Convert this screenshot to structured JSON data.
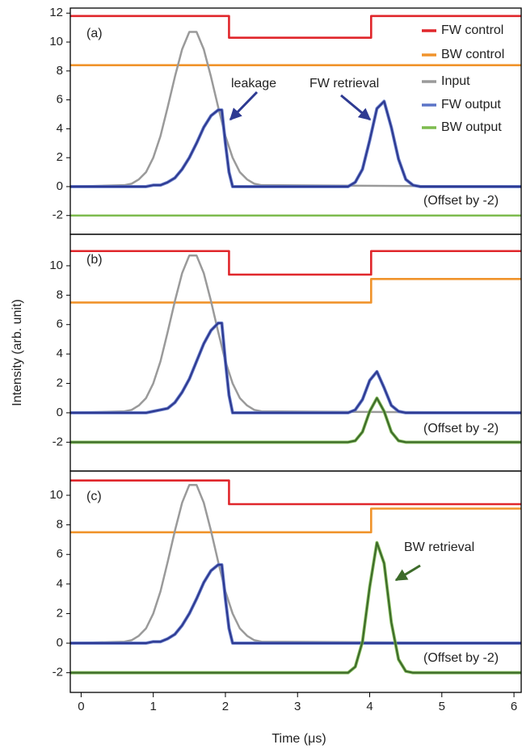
{
  "chart_data": [
    {
      "type": "line",
      "label": "(a)",
      "legend": "upper right",
      "xlim": [
        -0.15,
        6.1
      ],
      "ylim": [
        -3.3,
        12.35
      ],
      "yticks": [
        -2,
        0,
        2,
        4,
        6,
        8,
        10,
        12
      ],
      "annotations": [
        "leakage",
        "FW retrieval",
        "(Offset by -2)"
      ],
      "series": [
        {
          "name": "FW control",
          "color": "#e0262b",
          "x": [
            -0.15,
            2.05,
            2.05,
            4.02,
            4.02,
            6.1
          ],
          "values": [
            11.8,
            11.8,
            10.3,
            10.3,
            11.8,
            11.8
          ]
        },
        {
          "name": "BW control",
          "color": "#f0932b",
          "x": [
            -0.15,
            6.1
          ],
          "values": [
            8.4,
            8.4
          ]
        },
        {
          "name": "Input",
          "color": "#9a9a9a",
          "x": [
            -0.15,
            0.6,
            0.7,
            0.8,
            0.9,
            1.0,
            1.1,
            1.2,
            1.3,
            1.4,
            1.5,
            1.6,
            1.7,
            1.8,
            1.9,
            2.0,
            2.1,
            2.2,
            2.3,
            2.4,
            2.5,
            6.1
          ],
          "values": [
            0,
            0.1,
            0.2,
            0.5,
            1.0,
            2.0,
            3.5,
            5.5,
            7.6,
            9.5,
            10.7,
            10.7,
            9.5,
            7.6,
            5.5,
            3.5,
            2.0,
            1.0,
            0.5,
            0.2,
            0.1,
            0
          ]
        },
        {
          "name": "FW output",
          "color": "#5b73c7",
          "fit_color": "#2e3a92",
          "x": [
            -0.15,
            0.8,
            0.9,
            1.0,
            1.1,
            1.2,
            1.3,
            1.4,
            1.5,
            1.6,
            1.7,
            1.8,
            1.9,
            1.95,
            2.0,
            2.05,
            2.1,
            3.7,
            3.8,
            3.9,
            4.0,
            4.1,
            4.2,
            4.3,
            4.4,
            4.5,
            4.6,
            4.7,
            6.1
          ],
          "values": [
            0,
            0,
            0,
            0.1,
            0.1,
            0.3,
            0.6,
            1.2,
            2.0,
            3.0,
            4.1,
            4.9,
            5.3,
            5.3,
            3.0,
            1.0,
            0,
            0,
            0.3,
            1.2,
            3.2,
            5.4,
            5.9,
            4.1,
            1.9,
            0.5,
            0.1,
            0,
            0
          ]
        },
        {
          "name": "BW output",
          "color": "#7dbb4e",
          "x": [
            -0.15,
            6.1
          ],
          "values": [
            -2,
            -2
          ]
        }
      ]
    },
    {
      "type": "line",
      "label": "(b)",
      "ylabel": "Intensity (arb. unit)",
      "xlim": [
        -0.15,
        6.1
      ],
      "ylim": [
        -3.96,
        12.14
      ],
      "yticks": [
        -2,
        0,
        2,
        4,
        6,
        8,
        10
      ],
      "annotations": [
        "(Offset by -2)"
      ],
      "series": [
        {
          "color": "#e0262b",
          "x": [
            -0.15,
            2.05,
            2.05,
            4.02,
            4.02,
            6.1
          ],
          "values": [
            11,
            11,
            9.4,
            9.4,
            11,
            11
          ]
        },
        {
          "color": "#f0932b",
          "x": [
            -0.15,
            4.02,
            4.02,
            6.1
          ],
          "values": [
            7.5,
            7.5,
            9.1,
            9.1
          ]
        },
        {
          "color": "#9a9a9a",
          "x": [
            -0.15,
            0.6,
            0.7,
            0.8,
            0.9,
            1.0,
            1.1,
            1.2,
            1.3,
            1.4,
            1.5,
            1.6,
            1.7,
            1.8,
            1.9,
            2.0,
            2.1,
            2.2,
            2.3,
            2.4,
            2.5,
            6.1
          ],
          "values": [
            0,
            0.1,
            0.2,
            0.5,
            1.0,
            2.0,
            3.5,
            5.5,
            7.6,
            9.5,
            10.7,
            10.7,
            9.5,
            7.6,
            5.5,
            3.5,
            2.0,
            1.0,
            0.5,
            0.2,
            0.1,
            0
          ]
        },
        {
          "color": "#5b73c7",
          "fit_color": "#2e3a92",
          "x": [
            -0.15,
            0.8,
            0.9,
            1.0,
            1.1,
            1.2,
            1.3,
            1.4,
            1.5,
            1.6,
            1.7,
            1.8,
            1.9,
            1.95,
            2.0,
            2.05,
            2.1,
            3.7,
            3.8,
            3.9,
            4.0,
            4.1,
            4.2,
            4.3,
            4.4,
            4.5,
            6.1
          ],
          "values": [
            0,
            0,
            0,
            0.1,
            0.2,
            0.3,
            0.7,
            1.4,
            2.3,
            3.5,
            4.7,
            5.6,
            6.1,
            6.1,
            3.5,
            1.2,
            0,
            0,
            0.2,
            0.9,
            2.2,
            2.8,
            1.7,
            0.5,
            0.1,
            0,
            0
          ]
        },
        {
          "color": "#7dbb4e",
          "fit_color": "#3d6b2a",
          "x": [
            -0.15,
            3.7,
            3.8,
            3.9,
            4.0,
            4.1,
            4.2,
            4.3,
            4.4,
            4.5,
            6.1
          ],
          "values": [
            -2,
            -2,
            -1.9,
            -1.3,
            0.1,
            1.0,
            0.1,
            -1.3,
            -1.9,
            -2,
            -2
          ]
        }
      ]
    },
    {
      "type": "line",
      "label": "(c)",
      "xlabel": "Time (μs)",
      "xlim": [
        -0.15,
        6.1
      ],
      "ylim": [
        -3.33,
        11.64
      ],
      "yticks": [
        -2,
        0,
        2,
        4,
        6,
        8,
        10
      ],
      "xticks": [
        0,
        1,
        2,
        3,
        4,
        5,
        6
      ],
      "annotations": [
        "BW retrieval",
        "(Offset by -2)"
      ],
      "series": [
        {
          "color": "#e0262b",
          "x": [
            -0.15,
            2.05,
            2.05,
            6.1
          ],
          "values": [
            11,
            11,
            9.4,
            9.4
          ]
        },
        {
          "color": "#f0932b",
          "x": [
            -0.15,
            4.02,
            4.02,
            6.1
          ],
          "values": [
            7.5,
            7.5,
            9.1,
            9.1
          ]
        },
        {
          "color": "#9a9a9a",
          "x": [
            -0.15,
            0.6,
            0.7,
            0.8,
            0.9,
            1.0,
            1.1,
            1.2,
            1.3,
            1.4,
            1.5,
            1.6,
            1.7,
            1.8,
            1.9,
            2.0,
            2.1,
            2.2,
            2.3,
            2.4,
            2.5,
            6.1
          ],
          "values": [
            0,
            0.1,
            0.2,
            0.5,
            1.0,
            2.0,
            3.5,
            5.5,
            7.6,
            9.5,
            10.7,
            10.7,
            9.5,
            7.6,
            5.5,
            3.5,
            2.0,
            1.0,
            0.5,
            0.2,
            0.1,
            0
          ]
        },
        {
          "color": "#5b73c7",
          "fit_color": "#2e3a92",
          "x": [
            -0.15,
            0.8,
            0.9,
            1.0,
            1.1,
            1.2,
            1.3,
            1.4,
            1.5,
            1.6,
            1.7,
            1.8,
            1.9,
            1.95,
            2.0,
            2.05,
            2.1,
            6.1
          ],
          "values": [
            0,
            0,
            0,
            0.1,
            0.1,
            0.3,
            0.6,
            1.2,
            2.0,
            3.0,
            4.1,
            4.9,
            5.3,
            5.3,
            3.0,
            1.0,
            0,
            0
          ]
        },
        {
          "color": "#7dbb4e",
          "fit_color": "#3d6b2a",
          "x": [
            -0.15,
            3.7,
            3.8,
            3.9,
            4.0,
            4.1,
            4.2,
            4.3,
            4.4,
            4.5,
            4.6,
            6.1
          ],
          "values": [
            -2,
            -2,
            -1.6,
            0.1,
            3.8,
            6.8,
            5.4,
            1.4,
            -1.1,
            -1.9,
            -2,
            -2
          ]
        }
      ]
    }
  ]
}
